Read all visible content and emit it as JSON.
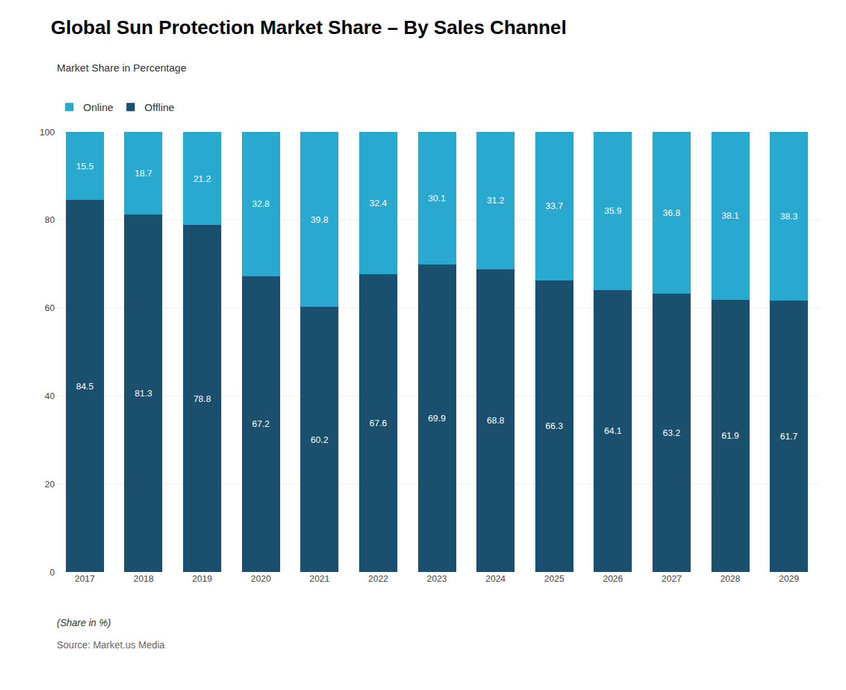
{
  "chart_data": {
    "type": "bar",
    "title": "Global Sun Protection Market Share – By Sales Channel",
    "subtitle": "Market Share in Percentage",
    "categories": [
      2017,
      2018,
      2019,
      2020,
      2021,
      2022,
      2023,
      2024,
      2025,
      2026,
      2027,
      2028,
      2029
    ],
    "series": [
      {
        "name": "Offline",
        "color": "#1a4f6e",
        "values": [
          84.5,
          81.3,
          78.8,
          67.2,
          60.2,
          67.6,
          69.9,
          68.8,
          66.3,
          64.1,
          63.2,
          61.9,
          61.7
        ]
      },
      {
        "name": "Online",
        "color": "#29a8d0",
        "values": [
          15.5,
          18.7,
          21.2,
          32.8,
          39.8,
          32.4,
          30.1,
          31.2,
          33.7,
          35.9,
          36.8,
          38.1,
          38.3
        ]
      }
    ],
    "stacked": true,
    "data_labels": true,
    "ylim": [
      0,
      100
    ],
    "yticks": [
      0,
      20,
      40,
      60,
      80,
      100
    ],
    "grid": true,
    "legend": "top left",
    "annotations": [
      "(Share in %)",
      "Source: Market.us Media"
    ]
  }
}
